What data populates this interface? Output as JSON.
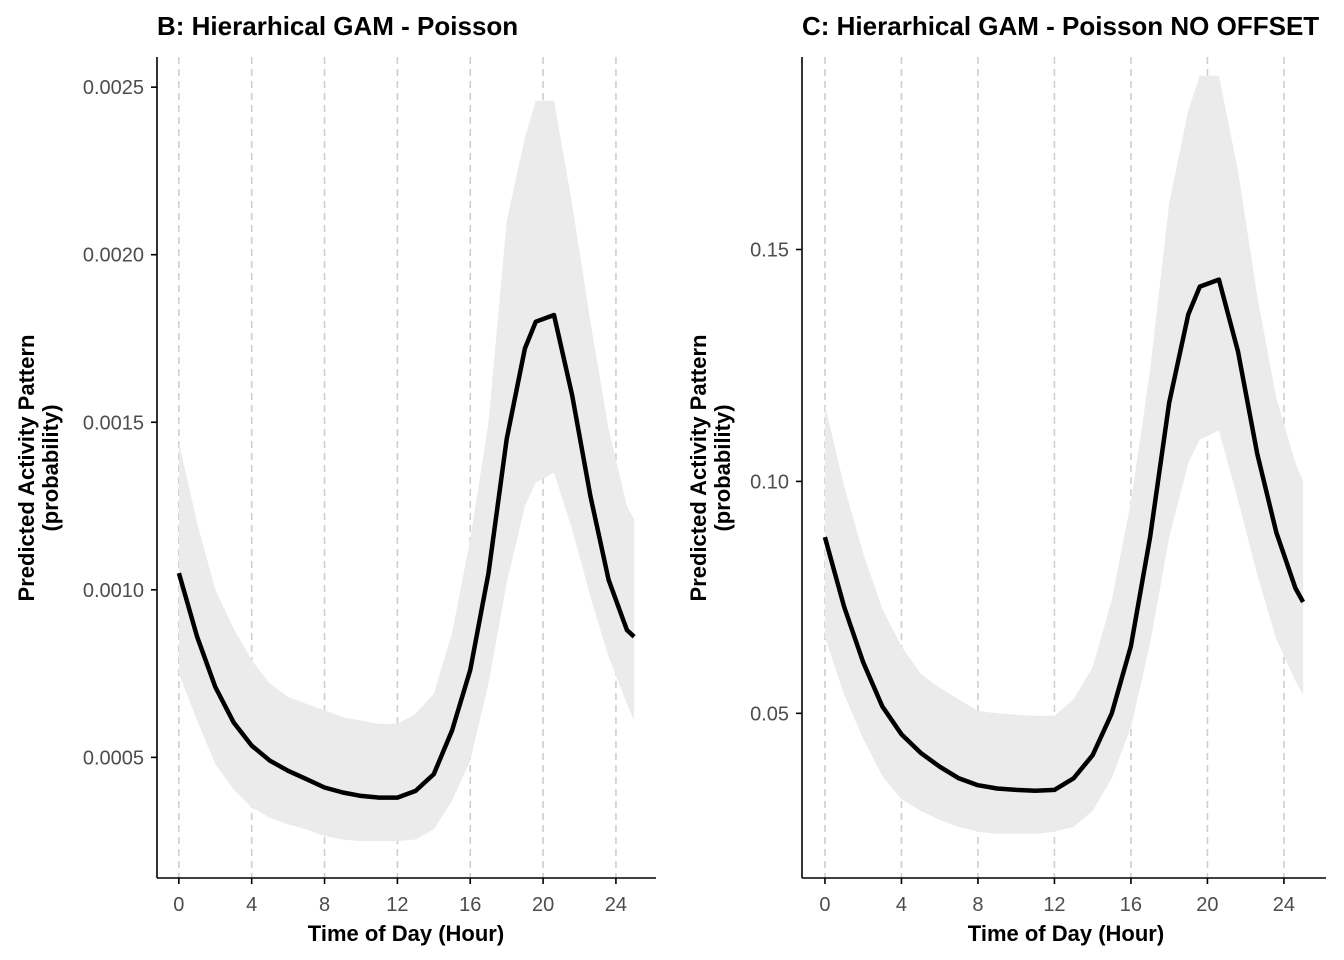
{
  "chart_data": [
    {
      "type": "line",
      "title": "B: Hierarhical GAM - Poisson",
      "xlabel": "Time of Day (Hour)",
      "ylabel": "Predicted Activity Pattern",
      "ylabel_line2": "(probability)",
      "xlim": [
        -1.2,
        26.2
      ],
      "ylim": [
        0.00014,
        0.00259
      ],
      "xticks": [
        0,
        4,
        8,
        12,
        16,
        20,
        24
      ],
      "xtick_labels": [
        "0",
        "4",
        "8",
        "12",
        "16",
        "20",
        "24"
      ],
      "yticks": [
        0.0005,
        0.001,
        0.0015,
        0.002,
        0.0025
      ],
      "ytick_labels": [
        "0.0005",
        "0.0010",
        "0.0015",
        "0.0020",
        "0.0025"
      ],
      "vertical_gridlines": true,
      "series": [
        {
          "x": [
            0,
            1,
            2,
            3,
            4,
            5,
            6,
            7,
            8,
            9,
            10,
            11,
            12,
            13,
            14,
            15,
            16,
            17,
            18,
            19,
            19.6,
            20.6,
            21.6,
            22.6,
            23.6,
            24.6,
            25
          ],
          "y": [
            0.00105,
            0.00086,
            0.00071,
            0.000605,
            0.000535,
            0.00049,
            0.00046,
            0.000435,
            0.00041,
            0.000395,
            0.000385,
            0.00038,
            0.00038,
            0.0004,
            0.00045,
            0.00058,
            0.00076,
            0.00105,
            0.00145,
            0.00172,
            0.0018,
            0.00182,
            0.00158,
            0.00128,
            0.00103,
            0.00088,
            0.00086
          ],
          "lower": [
            0.00075,
            0.00061,
            0.00048,
            0.000405,
            0.00035,
            0.00032,
            0.0003,
            0.000285,
            0.000265,
            0.000255,
            0.00025,
            0.00025,
            0.00025,
            0.000255,
            0.000285,
            0.00037,
            0.00049,
            0.00072,
            0.00102,
            0.00125,
            0.00132,
            0.00135,
            0.00118,
            0.00098,
            0.0008,
            0.00066,
            0.00061
          ],
          "upper": [
            0.00144,
            0.0012,
            0.001,
            0.000885,
            0.00079,
            0.00072,
            0.00068,
            0.00066,
            0.00064,
            0.00062,
            0.00061,
            0.0006,
            0.0006,
            0.00063,
            0.00069,
            0.00087,
            0.00115,
            0.0015,
            0.0021,
            0.00235,
            0.00246,
            0.00246,
            0.00215,
            0.0018,
            0.00148,
            0.00125,
            0.00121
          ]
        }
      ]
    },
    {
      "type": "line",
      "title": "C: Hierarhical GAM - Poisson NO OFFSET",
      "xlabel": "Time of Day (Hour)",
      "ylabel": "Predicted Activity Pattern",
      "ylabel_line2": "(probability)",
      "xlim": [
        -1.2,
        26.2
      ],
      "ylim": [
        0.0145,
        0.1915
      ],
      "xticks": [
        0,
        4,
        8,
        12,
        16,
        20,
        24
      ],
      "xtick_labels": [
        "0",
        "4",
        "8",
        "12",
        "16",
        "20",
        "24"
      ],
      "yticks": [
        0.05,
        0.1,
        0.15
      ],
      "ytick_labels": [
        "0.05",
        "0.10",
        "0.15"
      ],
      "vertical_gridlines": true,
      "series": [
        {
          "x": [
            0,
            1,
            2,
            3,
            4,
            5,
            6,
            7,
            8,
            9,
            10,
            11,
            12,
            13,
            14,
            15,
            16,
            17,
            18,
            19,
            19.6,
            20.6,
            21.6,
            22.6,
            23.6,
            24.6,
            25
          ],
          "y": [
            0.088,
            0.073,
            0.061,
            0.0515,
            0.0455,
            0.0415,
            0.0385,
            0.036,
            0.0345,
            0.0338,
            0.0335,
            0.0333,
            0.0335,
            0.036,
            0.041,
            0.05,
            0.0645,
            0.088,
            0.117,
            0.136,
            0.142,
            0.1435,
            0.128,
            0.106,
            0.089,
            0.077,
            0.074
          ],
          "lower": [
            0.0665,
            0.054,
            0.0445,
            0.0365,
            0.0315,
            0.029,
            0.027,
            0.0255,
            0.0245,
            0.024,
            0.024,
            0.024,
            0.0245,
            0.0255,
            0.029,
            0.036,
            0.047,
            0.065,
            0.088,
            0.104,
            0.109,
            0.111,
            0.096,
            0.08,
            0.066,
            0.057,
            0.054
          ],
          "upper": [
            0.1165,
            0.099,
            0.0845,
            0.0725,
            0.0645,
            0.0585,
            0.0555,
            0.053,
            0.0505,
            0.05,
            0.0497,
            0.0495,
            0.0495,
            0.053,
            0.06,
            0.0745,
            0.0955,
            0.124,
            0.16,
            0.18,
            0.1875,
            0.1875,
            0.167,
            0.14,
            0.118,
            0.104,
            0.1
          ]
        }
      ]
    }
  ]
}
